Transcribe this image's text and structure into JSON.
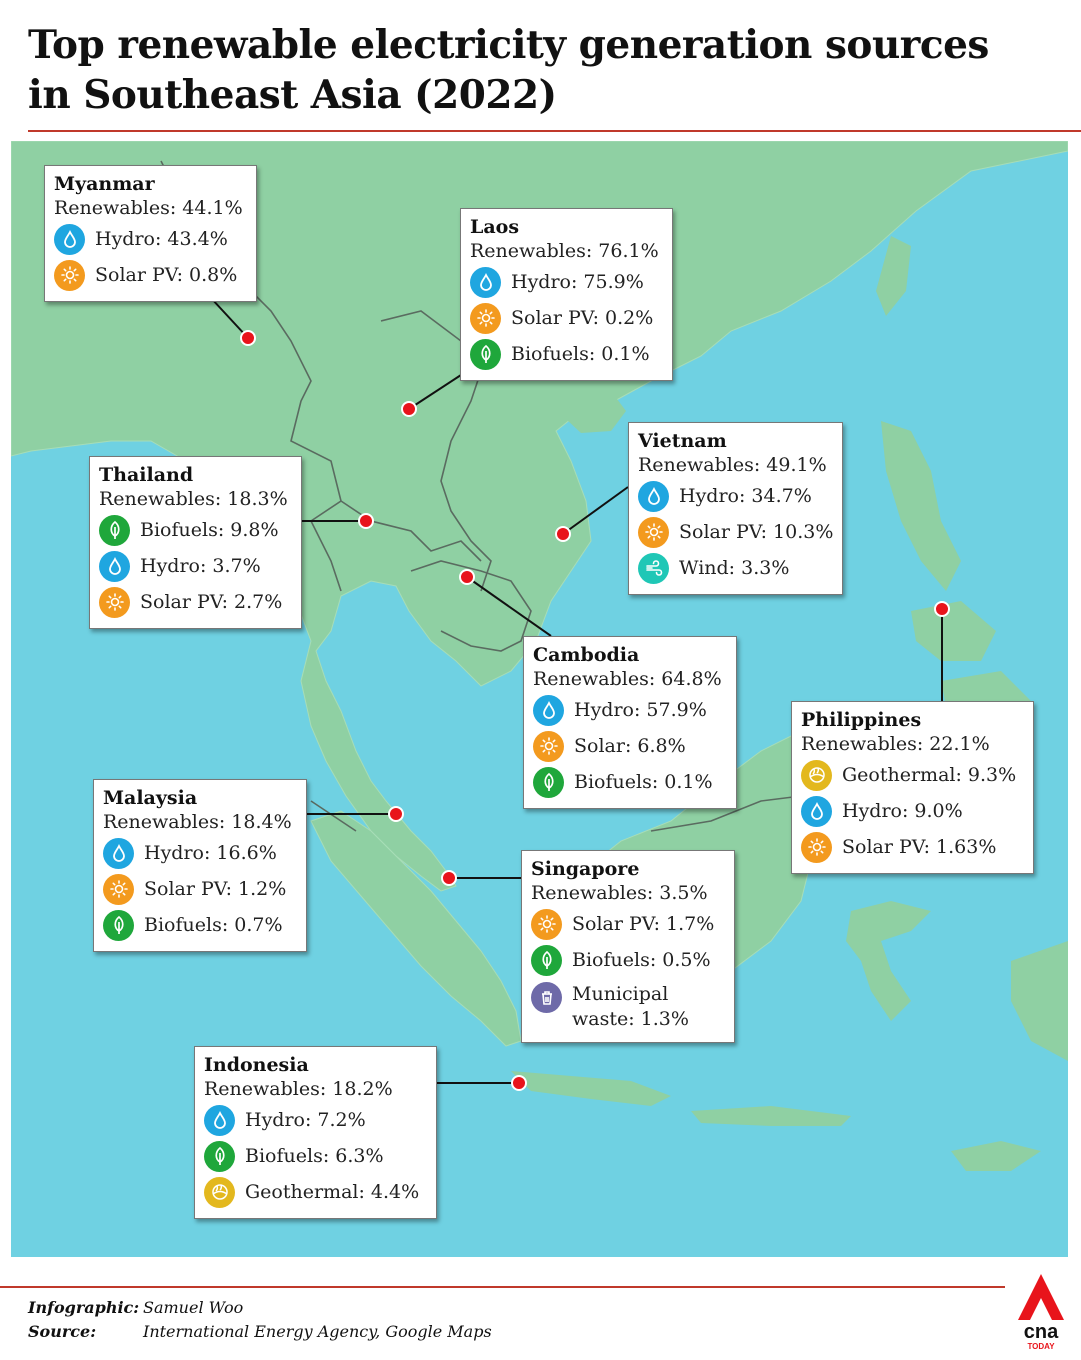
{
  "title": "Top renewable electricity generation sources in Southeast Asia (2022)",
  "colors": {
    "accent": "#c0392b",
    "sea": "#6fd1e2",
    "land": "#8fd0a3",
    "marker": "#e8141b",
    "hydro": "#1fa6e0",
    "solar": "#f39a1e",
    "biofuels": "#1fa73b",
    "wind": "#1fc7b6",
    "geothermal": "#e3b81e",
    "waste": "#6e6aa8"
  },
  "countries": {
    "myanmar": {
      "name": "Myanmar",
      "renewables": "Renewables: 44.1%",
      "sources": [
        {
          "icon": "hydro-icon",
          "label": "Hydro: 43.4%"
        },
        {
          "icon": "solar-icon",
          "label": "Solar PV: 0.8%"
        }
      ]
    },
    "laos": {
      "name": "Laos",
      "renewables": "Renewables: 76.1%",
      "sources": [
        {
          "icon": "hydro-icon",
          "label": "Hydro: 75.9%"
        },
        {
          "icon": "solar-icon",
          "label": "Solar PV: 0.2%"
        },
        {
          "icon": "biofuels-icon",
          "label": "Biofuels: 0.1%"
        }
      ]
    },
    "thailand": {
      "name": "Thailand",
      "renewables": "Renewables: 18.3%",
      "sources": [
        {
          "icon": "biofuels-icon",
          "label": "Biofuels: 9.8%"
        },
        {
          "icon": "hydro-icon",
          "label": "Hydro: 3.7%"
        },
        {
          "icon": "solar-icon",
          "label": "Solar PV: 2.7%"
        }
      ]
    },
    "vietnam": {
      "name": "Vietnam",
      "renewables": "Renewables: 49.1%",
      "sources": [
        {
          "icon": "hydro-icon",
          "label": "Hydro: 34.7%"
        },
        {
          "icon": "solar-icon",
          "label": "Solar PV: 10.3%"
        },
        {
          "icon": "wind-icon",
          "label": "Wind: 3.3%"
        }
      ]
    },
    "cambodia": {
      "name": "Cambodia",
      "renewables": "Renewables: 64.8%",
      "sources": [
        {
          "icon": "hydro-icon",
          "label": "Hydro: 57.9%"
        },
        {
          "icon": "solar-icon",
          "label": "Solar: 6.8%"
        },
        {
          "icon": "biofuels-icon",
          "label": "Biofuels: 0.1%"
        }
      ]
    },
    "philippines": {
      "name": "Philippines",
      "renewables": "Renewables: 22.1%",
      "sources": [
        {
          "icon": "geothermal-icon",
          "label": "Geothermal: 9.3%"
        },
        {
          "icon": "hydro-icon",
          "label": "Hydro: 9.0%"
        },
        {
          "icon": "solar-icon",
          "label": "Solar PV: 1.63%"
        }
      ]
    },
    "malaysia": {
      "name": "Malaysia",
      "renewables": "Renewables: 18.4%",
      "sources": [
        {
          "icon": "hydro-icon",
          "label": "Hydro: 16.6%"
        },
        {
          "icon": "solar-icon",
          "label": "Solar PV: 1.2%"
        },
        {
          "icon": "biofuels-icon",
          "label": "Biofuels: 0.7%"
        }
      ]
    },
    "singapore": {
      "name": "Singapore",
      "renewables": "Renewables: 3.5%",
      "sources": [
        {
          "icon": "solar-icon",
          "label": "Solar PV: 1.7%"
        },
        {
          "icon": "biofuels-icon",
          "label": "Biofuels: 0.5%"
        },
        {
          "icon": "waste-icon",
          "label": "Municipal waste: 1.3%"
        }
      ]
    },
    "indonesia": {
      "name": "Indonesia",
      "renewables": "Renewables: 18.2%",
      "sources": [
        {
          "icon": "hydro-icon",
          "label": "Hydro: 7.2%"
        },
        {
          "icon": "biofuels-icon",
          "label": "Biofuels: 6.3%"
        },
        {
          "icon": "geothermal-icon",
          "label": "Geothermal: 4.4%"
        }
      ]
    }
  },
  "credits": {
    "infographic_key": "Infographic:",
    "infographic_value": "Samuel Woo",
    "source_key": "Source:",
    "source_value": "International Energy Agency, Google Maps"
  },
  "logo": {
    "text": "cna",
    "subtext": "TODAY"
  }
}
